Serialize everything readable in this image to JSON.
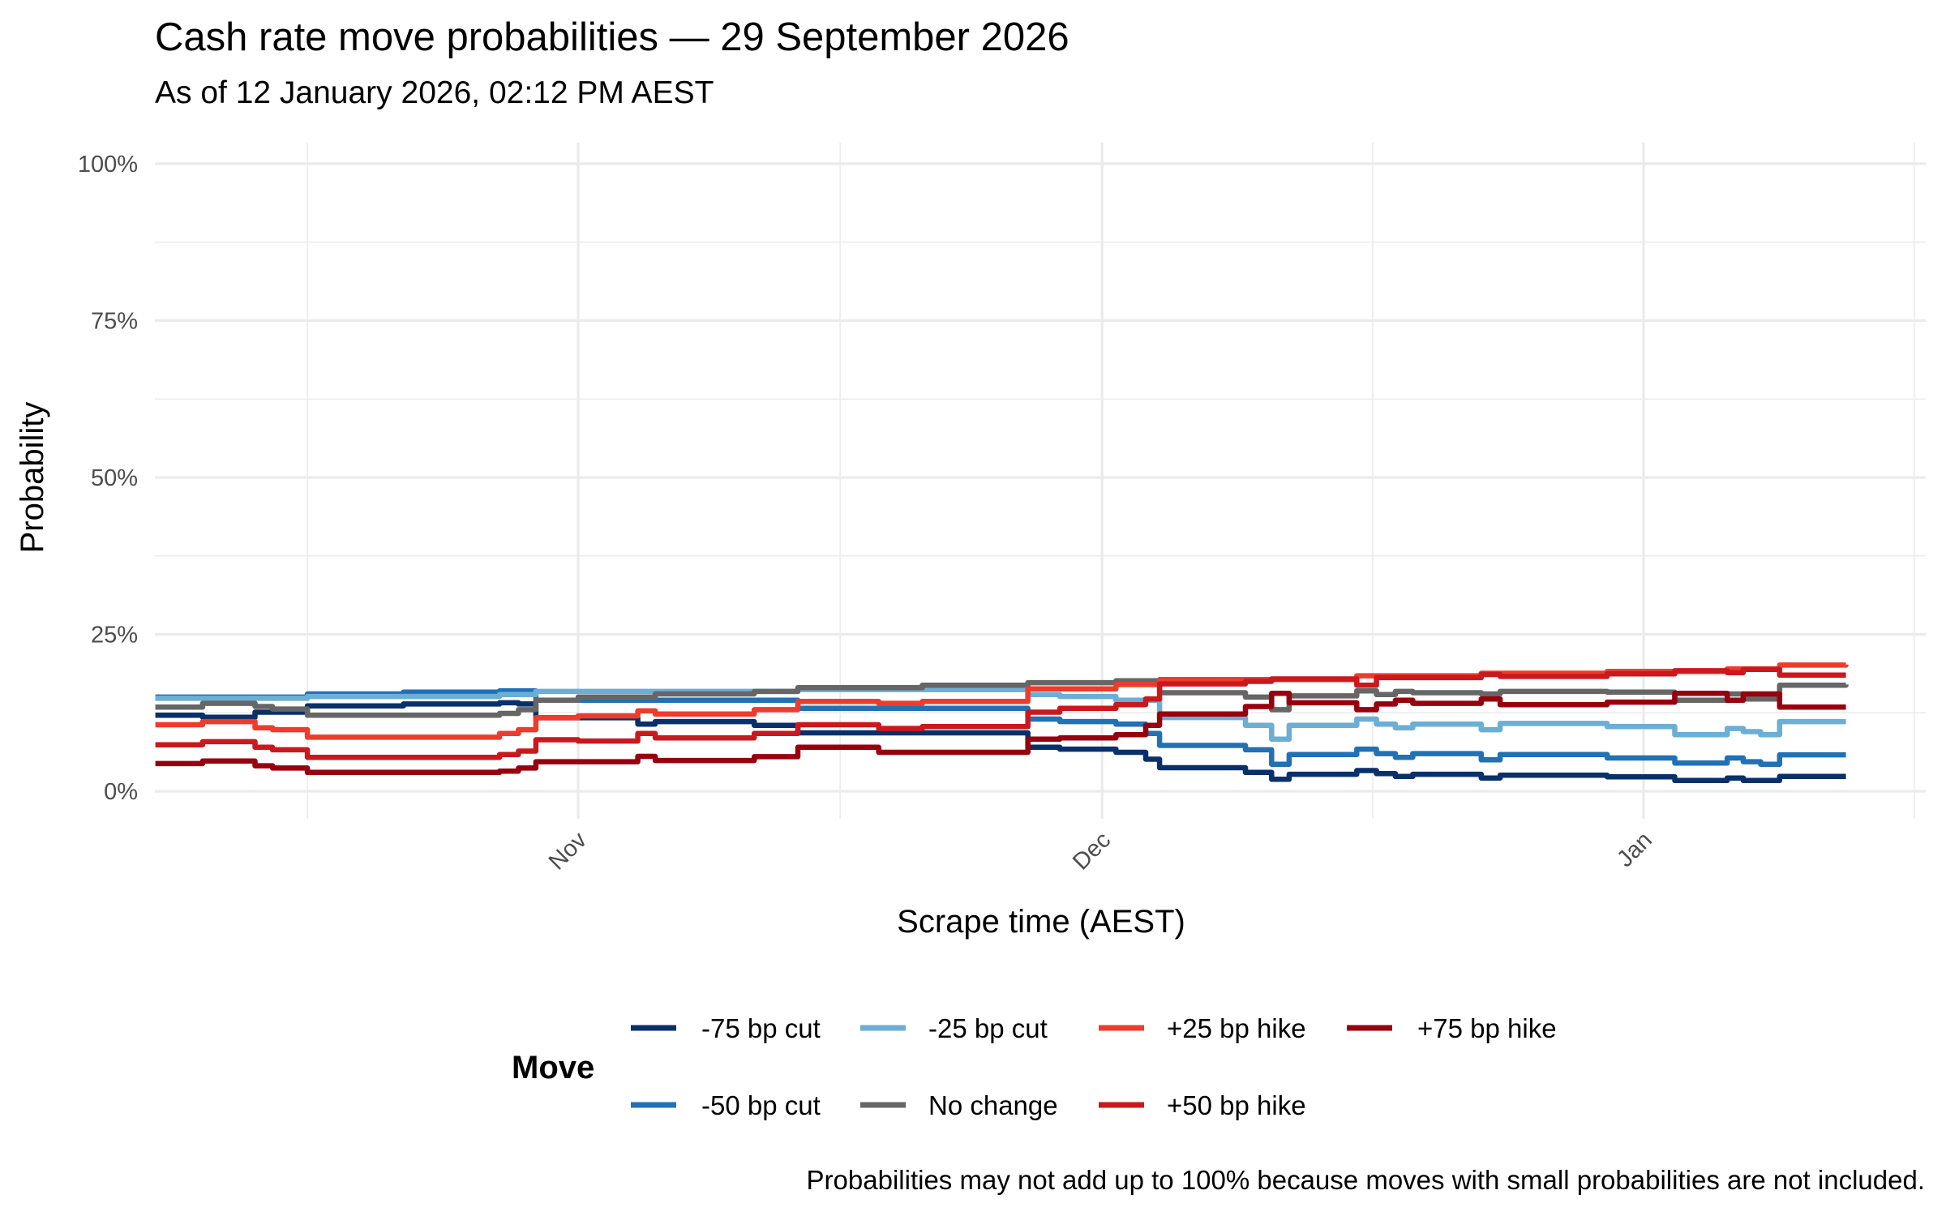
{
  "chart_data": {
    "type": "line",
    "title": "Cash rate move probabilities — 29 September 2026",
    "subtitle": "As of 12 January 2026, 02:12 PM AEST",
    "xlabel": "Scrape time (AEST)",
    "ylabel": "Probability",
    "caption": "Probabilities may not add up to 100% because moves with small probabilities are not included.",
    "x_ticks": [
      {
        "date": "2025-11-01 00:00",
        "label": "Nov"
      },
      {
        "date": "2025-12-01 00:00",
        "label": "Dec"
      },
      {
        "date": "2026-01-01 00:00",
        "label": "Jan"
      }
    ],
    "x_minor_ticks": [
      "2025-10-16 12:00",
      "2025-11-16 00:00",
      "2025-12-16 12:00",
      "2026-01-16 12:00"
    ],
    "y_ticks": [
      {
        "value": 0,
        "label": "0%"
      },
      {
        "value": 25,
        "label": "25%"
      },
      {
        "value": 50,
        "label": "50%"
      },
      {
        "value": 75,
        "label": "75%"
      },
      {
        "value": 100,
        "label": "100%"
      }
    ],
    "ylim": [
      0,
      100
    ],
    "grid": true,
    "legend": {
      "title": "Move",
      "position": "bottom"
    },
    "series": [
      {
        "name": "-75 bp cut",
        "color": "#08306b",
        "points": [
          [
            "2025-10-07 19:00",
            12.1
          ],
          [
            "2025-10-10 12:00",
            11.8
          ],
          [
            "2025-10-13 12:00",
            12.6
          ],
          [
            "2025-10-16 12:00",
            13.6
          ],
          [
            "2025-10-22 00:00",
            13.9
          ],
          [
            "2025-10-27 12:00",
            14.1
          ],
          [
            "2025-10-28 14:00",
            13.9
          ],
          [
            "2025-10-29 14:00",
            11.7
          ],
          [
            "2025-11-04 10:00",
            10.7
          ],
          [
            "2025-11-05 10:00",
            11.1
          ],
          [
            "2025-11-11 02:00",
            10.5
          ],
          [
            "2025-11-13 14:00",
            9.3
          ],
          [
            "2025-11-26 18:00",
            7.0
          ],
          [
            "2025-11-28 14:00",
            6.7
          ],
          [
            "2025-12-01 19:00",
            6.2
          ],
          [
            "2025-12-03 12:00",
            5.1
          ],
          [
            "2025-12-04 07:00",
            3.75
          ],
          [
            "2025-12-09 05:00",
            3.0
          ],
          [
            "2025-12-10 17:00",
            1.9
          ],
          [
            "2025-12-11 17:00",
            2.7
          ],
          [
            "2025-12-15 14:00",
            3.3
          ],
          [
            "2025-12-16 17:00",
            2.8
          ],
          [
            "2025-12-17 19:00",
            2.35
          ],
          [
            "2025-12-18 19:00",
            2.7
          ],
          [
            "2025-12-22 17:00",
            2.1
          ],
          [
            "2025-12-23 19:00",
            2.55
          ],
          [
            "2025-12-29 22:00",
            2.3
          ],
          [
            "2026-01-02 19:00",
            1.7
          ],
          [
            "2026-01-05 19:00",
            2.1
          ],
          [
            "2026-01-06 17:00",
            1.7
          ],
          [
            "2026-01-08 19:00",
            2.35
          ],
          [
            "2026-01-12 14:12",
            2.35
          ]
        ]
      },
      {
        "name": "-50 bp cut",
        "color": "#2171b5",
        "points": [
          [
            "2025-10-07 19:00",
            15.0
          ],
          [
            "2025-10-16 12:00",
            15.5
          ],
          [
            "2025-10-22 00:00",
            15.8
          ],
          [
            "2025-10-27 12:00",
            16.0
          ],
          [
            "2025-10-29 14:00",
            14.5
          ],
          [
            "2025-11-13 14:00",
            13.2
          ],
          [
            "2025-11-26 18:00",
            11.5
          ],
          [
            "2025-11-28 14:00",
            11.1
          ],
          [
            "2025-12-01 19:00",
            10.7
          ],
          [
            "2025-12-03 12:00",
            9.2
          ],
          [
            "2025-12-04 07:00",
            7.3
          ],
          [
            "2025-12-09 05:00",
            6.6
          ],
          [
            "2025-12-10 17:00",
            4.3
          ],
          [
            "2025-12-11 17:00",
            5.85
          ],
          [
            "2025-12-15 14:00",
            6.7
          ],
          [
            "2025-12-16 17:00",
            6.0
          ],
          [
            "2025-12-17 19:00",
            5.4
          ],
          [
            "2025-12-18 19:00",
            6.0
          ],
          [
            "2025-12-22 17:00",
            5.0
          ],
          [
            "2025-12-23 19:00",
            5.85
          ],
          [
            "2025-12-29 22:00",
            5.3
          ],
          [
            "2026-01-02 19:00",
            4.5
          ],
          [
            "2026-01-05 19:00",
            5.3
          ],
          [
            "2026-01-06 17:00",
            4.7
          ],
          [
            "2026-01-07 17:00",
            4.3
          ],
          [
            "2026-01-08 19:00",
            5.8
          ],
          [
            "2026-01-12 14:12",
            5.8
          ]
        ]
      },
      {
        "name": "-25 bp cut",
        "color": "#6baed6",
        "points": [
          [
            "2025-10-07 19:00",
            14.8
          ],
          [
            "2025-10-16 12:00",
            15.1
          ],
          [
            "2025-10-27 12:00",
            15.4
          ],
          [
            "2025-10-29 14:00",
            15.9
          ],
          [
            "2025-11-13 14:00",
            16.2
          ],
          [
            "2025-11-26 18:00",
            15.4
          ],
          [
            "2025-11-28 14:00",
            15.1
          ],
          [
            "2025-12-01 19:00",
            14.5
          ],
          [
            "2025-12-04 07:00",
            11.75
          ],
          [
            "2025-12-09 05:00",
            10.5
          ],
          [
            "2025-12-10 17:00",
            8.3
          ],
          [
            "2025-12-11 17:00",
            10.5
          ],
          [
            "2025-12-15 14:00",
            11.5
          ],
          [
            "2025-12-16 17:00",
            10.7
          ],
          [
            "2025-12-17 19:00",
            10.1
          ],
          [
            "2025-12-18 19:00",
            10.7
          ],
          [
            "2025-12-22 17:00",
            9.8
          ],
          [
            "2025-12-23 19:00",
            10.8
          ],
          [
            "2025-12-29 22:00",
            10.3
          ],
          [
            "2026-01-02 19:00",
            9.0
          ],
          [
            "2026-01-05 19:00",
            10.0
          ],
          [
            "2026-01-06 17:00",
            9.5
          ],
          [
            "2026-01-07 17:00",
            9.0
          ],
          [
            "2026-01-08 19:00",
            11.1
          ],
          [
            "2026-01-12 14:12",
            11.1
          ]
        ]
      },
      {
        "name": "No change",
        "color": "#666666",
        "points": [
          [
            "2025-10-07 19:00",
            13.4
          ],
          [
            "2025-10-10 12:00",
            14.0
          ],
          [
            "2025-10-13 12:00",
            13.5
          ],
          [
            "2025-10-14 12:00",
            13.1
          ],
          [
            "2025-10-16 12:00",
            12.1
          ],
          [
            "2025-10-27 12:00",
            12.4
          ],
          [
            "2025-10-28 14:00",
            13.0
          ],
          [
            "2025-10-29 14:00",
            14.5
          ],
          [
            "2025-11-01 00:00",
            15.0
          ],
          [
            "2025-11-05 10:00",
            15.5
          ],
          [
            "2025-11-11 02:00",
            15.9
          ],
          [
            "2025-11-13 14:00",
            16.5
          ],
          [
            "2025-11-20 17:00",
            16.9
          ],
          [
            "2025-11-26 18:00",
            17.3
          ],
          [
            "2025-12-01 19:00",
            17.6
          ],
          [
            "2025-12-04 07:00",
            15.7
          ],
          [
            "2025-12-09 05:00",
            15.0
          ],
          [
            "2025-12-10 17:00",
            13.0
          ],
          [
            "2025-12-11 17:00",
            15.2
          ],
          [
            "2025-12-15 14:00",
            16.0
          ],
          [
            "2025-12-16 17:00",
            15.4
          ],
          [
            "2025-12-17 19:00",
            15.9
          ],
          [
            "2025-12-18 19:00",
            15.7
          ],
          [
            "2025-12-22 17:00",
            15.5
          ],
          [
            "2025-12-23 19:00",
            15.9
          ],
          [
            "2025-12-29 22:00",
            15.8
          ],
          [
            "2026-01-02 19:00",
            14.5
          ],
          [
            "2026-01-05 19:00",
            15.5
          ],
          [
            "2026-01-06 17:00",
            14.7
          ],
          [
            "2026-01-08 19:00",
            16.9
          ],
          [
            "2026-01-12 14:12",
            17.0
          ]
        ]
      },
      {
        "name": "+25 bp hike",
        "color": "#ef3b2c",
        "points": [
          [
            "2025-10-07 19:00",
            10.6
          ],
          [
            "2025-10-10 12:00",
            11.1
          ],
          [
            "2025-10-13 12:00",
            10.1
          ],
          [
            "2025-10-14 12:00",
            9.8
          ],
          [
            "2025-10-16 12:00",
            8.6
          ],
          [
            "2025-10-27 12:00",
            9.2
          ],
          [
            "2025-10-28 14:00",
            9.8
          ],
          [
            "2025-10-29 14:00",
            11.7
          ],
          [
            "2025-11-01 00:00",
            12.0
          ],
          [
            "2025-11-04 10:00",
            12.8
          ],
          [
            "2025-11-05 10:00",
            12.3
          ],
          [
            "2025-11-11 02:00",
            13.0
          ],
          [
            "2025-11-13 14:00",
            14.3
          ],
          [
            "2025-11-18 05:00",
            14.0
          ],
          [
            "2025-11-20 17:00",
            14.3
          ],
          [
            "2025-11-26 18:00",
            16.3
          ],
          [
            "2025-12-01 19:00",
            17.0
          ],
          [
            "2025-12-04 07:00",
            17.8
          ],
          [
            "2025-12-15 14:00",
            18.4
          ],
          [
            "2025-12-22 17:00",
            18.8
          ],
          [
            "2025-12-29 22:00",
            19.1
          ],
          [
            "2026-01-05 19:00",
            19.5
          ],
          [
            "2026-01-08 19:00",
            20.1
          ],
          [
            "2026-01-12 14:12",
            20.2
          ]
        ]
      },
      {
        "name": "+50 bp hike",
        "color": "#cb181d",
        "points": [
          [
            "2025-10-07 19:00",
            7.4
          ],
          [
            "2025-10-10 12:00",
            7.9
          ],
          [
            "2025-10-13 12:00",
            7.0
          ],
          [
            "2025-10-14 12:00",
            6.6
          ],
          [
            "2025-10-16 12:00",
            5.4
          ],
          [
            "2025-10-27 12:00",
            5.85
          ],
          [
            "2025-10-28 14:00",
            6.4
          ],
          [
            "2025-10-29 14:00",
            8.2
          ],
          [
            "2025-11-01 00:00",
            8.0
          ],
          [
            "2025-11-04 10:00",
            9.2
          ],
          [
            "2025-11-05 10:00",
            8.5
          ],
          [
            "2025-11-11 02:00",
            9.2
          ],
          [
            "2025-11-13 14:00",
            10.6
          ],
          [
            "2025-11-18 05:00",
            10.0
          ],
          [
            "2025-11-20 17:00",
            10.3
          ],
          [
            "2025-11-26 18:00",
            12.6
          ],
          [
            "2025-11-28 14:00",
            13.2
          ],
          [
            "2025-12-01 19:00",
            13.8
          ],
          [
            "2025-12-03 12:00",
            14.7
          ],
          [
            "2025-12-04 07:00",
            17.1
          ],
          [
            "2025-12-09 05:00",
            17.5
          ],
          [
            "2025-12-10 17:00",
            17.9
          ],
          [
            "2025-12-15 14:00",
            16.9
          ],
          [
            "2025-12-16 17:00",
            18.1
          ],
          [
            "2025-12-22 17:00",
            18.6
          ],
          [
            "2025-12-23 19:00",
            18.3
          ],
          [
            "2025-12-29 22:00",
            18.7
          ],
          [
            "2026-01-02 19:00",
            19.2
          ],
          [
            "2026-01-05 19:00",
            18.9
          ],
          [
            "2026-01-06 17:00",
            19.4
          ],
          [
            "2026-01-08 19:00",
            18.5
          ],
          [
            "2026-01-12 14:12",
            18.5
          ]
        ]
      },
      {
        "name": "+75 bp hike",
        "color": "#99000d",
        "points": [
          [
            "2025-10-07 19:00",
            4.4
          ],
          [
            "2025-10-10 12:00",
            4.8
          ],
          [
            "2025-10-13 12:00",
            4.06
          ],
          [
            "2025-10-14 12:00",
            3.7
          ],
          [
            "2025-10-16 12:00",
            3.0
          ],
          [
            "2025-10-27 12:00",
            3.2
          ],
          [
            "2025-10-28 14:00",
            3.7
          ],
          [
            "2025-10-29 14:00",
            4.7
          ],
          [
            "2025-11-04 10:00",
            5.55
          ],
          [
            "2025-11-05 10:00",
            4.9
          ],
          [
            "2025-11-11 02:00",
            5.5
          ],
          [
            "2025-11-13 14:00",
            7.0
          ],
          [
            "2025-11-18 05:00",
            6.2
          ],
          [
            "2025-11-26 18:00",
            8.3
          ],
          [
            "2025-11-28 14:00",
            8.5
          ],
          [
            "2025-12-01 19:00",
            9.0
          ],
          [
            "2025-12-03 12:00",
            10.5
          ],
          [
            "2025-12-04 07:00",
            12.3
          ],
          [
            "2025-12-09 05:00",
            13.5
          ],
          [
            "2025-12-10 17:00",
            15.6
          ],
          [
            "2025-12-11 17:00",
            14.1
          ],
          [
            "2025-12-15 14:00",
            13.0
          ],
          [
            "2025-12-16 17:00",
            13.9
          ],
          [
            "2025-12-17 19:00",
            14.5
          ],
          [
            "2025-12-18 19:00",
            14.0
          ],
          [
            "2025-12-22 17:00",
            14.7
          ],
          [
            "2025-12-23 19:00",
            13.8
          ],
          [
            "2025-12-29 22:00",
            14.2
          ],
          [
            "2026-01-02 19:00",
            15.6
          ],
          [
            "2026-01-05 19:00",
            14.5
          ],
          [
            "2026-01-06 17:00",
            15.5
          ],
          [
            "2026-01-08 19:00",
            13.4
          ],
          [
            "2026-01-12 14:12",
            13.4
          ]
        ]
      }
    ]
  }
}
